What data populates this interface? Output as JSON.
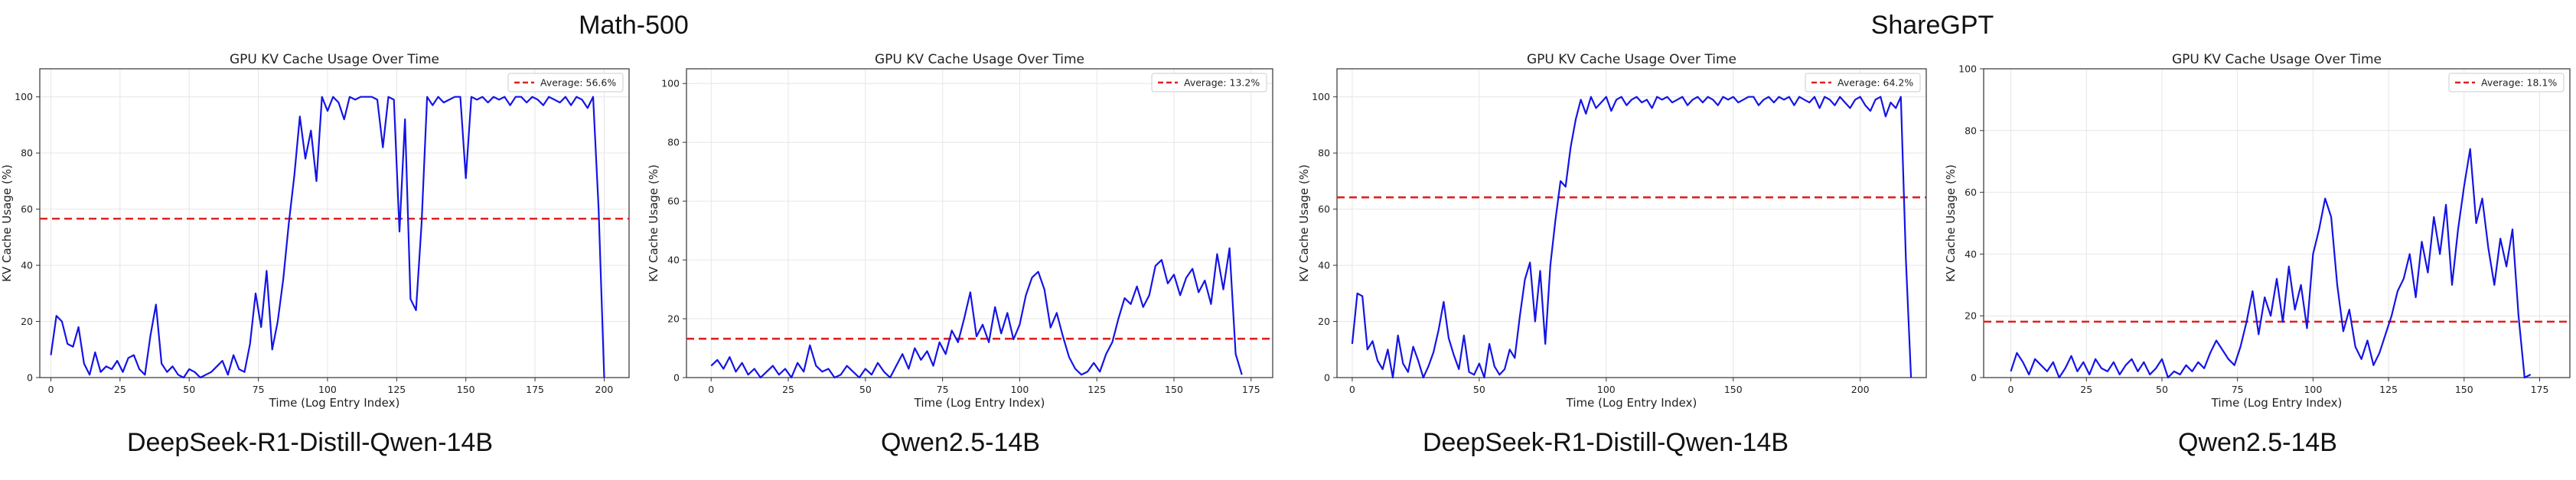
{
  "groups": [
    {
      "title": "Math-500"
    },
    {
      "title": "ShareGPT"
    }
  ],
  "colors": {
    "line": "#1414e6",
    "average": "#e02020",
    "grid": "#e6e6e6",
    "axis": "#333333"
  },
  "chart_data": [
    {
      "type": "line",
      "title": "GPU KV Cache Usage Over Time",
      "xlabel": "Time (Log Entry Index)",
      "ylabel": "KV Cache Usage (%)",
      "model_label": "DeepSeek-R1-Distill-Qwen-14B",
      "legend": "Average: 56.6%",
      "legend_position": "top-right",
      "average": 56.6,
      "xlim": [
        -4,
        209
      ],
      "ylim": [
        0,
        110
      ],
      "xticks": [
        0,
        25,
        50,
        75,
        100,
        125,
        150,
        175,
        200
      ],
      "yticks": [
        0,
        20,
        40,
        60,
        80,
        100
      ],
      "grid": true,
      "series": [
        {
          "x": [
            0,
            2,
            4,
            6,
            8,
            10,
            12,
            14,
            16,
            18,
            20,
            22,
            24,
            26,
            28,
            30,
            32,
            34,
            36,
            38,
            40,
            42,
            44,
            46,
            48,
            50,
            52,
            54,
            56,
            58,
            60,
            62,
            64,
            66,
            68,
            70,
            72,
            74,
            76,
            78,
            80,
            82,
            84,
            86,
            88,
            90,
            92,
            94,
            96,
            98,
            100,
            102,
            104,
            106,
            108,
            110,
            112,
            114,
            116,
            118,
            120,
            122,
            124,
            126,
            128,
            130,
            132,
            134,
            136,
            138,
            140,
            142,
            144,
            146,
            148,
            150,
            152,
            154,
            156,
            158,
            160,
            162,
            164,
            166,
            168,
            170,
            172,
            174,
            176,
            178,
            180,
            182,
            184,
            186,
            188,
            190,
            192,
            194,
            196,
            198,
            200
          ],
          "y": [
            8,
            22,
            20,
            12,
            11,
            18,
            5,
            1,
            9,
            2,
            4,
            3,
            6,
            2,
            7,
            8,
            3,
            1,
            15,
            26,
            5,
            2,
            4,
            1,
            0,
            3,
            2,
            0,
            1,
            2,
            4,
            6,
            1,
            8,
            3,
            2,
            12,
            30,
            18,
            38,
            10,
            20,
            35,
            55,
            72,
            93,
            78,
            88,
            70,
            100,
            95,
            100,
            98,
            92,
            100,
            99,
            100,
            100,
            100,
            99,
            82,
            100,
            99,
            52,
            92,
            28,
            24,
            55,
            100,
            97,
            100,
            98,
            99,
            100,
            100,
            71,
            100,
            99,
            100,
            98,
            100,
            99,
            100,
            97,
            100,
            100,
            98,
            100,
            99,
            97,
            100,
            99,
            98,
            100,
            97,
            100,
            99,
            96,
            100,
            60,
            0
          ]
        }
      ]
    },
    {
      "type": "line",
      "title": "GPU KV Cache Usage Over Time",
      "xlabel": "Time (Log Entry Index)",
      "ylabel": "KV Cache Usage (%)",
      "model_label": "Qwen2.5-14B",
      "legend": "Average: 13.2%",
      "legend_position": "top-right",
      "average": 13.2,
      "xlim": [
        -8,
        182
      ],
      "ylim": [
        0,
        105
      ],
      "xticks": [
        0,
        25,
        50,
        75,
        100,
        125,
        150,
        175
      ],
      "yticks": [
        0,
        20,
        40,
        60,
        80,
        100
      ],
      "grid": true,
      "series": [
        {
          "x": [
            0,
            2,
            4,
            6,
            8,
            10,
            12,
            14,
            16,
            18,
            20,
            22,
            24,
            26,
            28,
            30,
            32,
            34,
            36,
            38,
            40,
            42,
            44,
            46,
            48,
            50,
            52,
            54,
            56,
            58,
            60,
            62,
            64,
            66,
            68,
            70,
            72,
            74,
            76,
            78,
            80,
            82,
            84,
            86,
            88,
            90,
            92,
            94,
            96,
            98,
            100,
            102,
            104,
            106,
            108,
            110,
            112,
            114,
            116,
            118,
            120,
            122,
            124,
            126,
            128,
            130,
            132,
            134,
            136,
            138,
            140,
            142,
            144,
            146,
            148,
            150,
            152,
            154,
            156,
            158,
            160,
            162,
            164,
            166,
            168,
            170,
            172
          ],
          "y": [
            4,
            6,
            3,
            7,
            2,
            5,
            1,
            3,
            0,
            2,
            4,
            1,
            3,
            0,
            5,
            2,
            11,
            4,
            2,
            3,
            0,
            1,
            4,
            2,
            0,
            3,
            1,
            5,
            2,
            0,
            4,
            8,
            3,
            10,
            6,
            9,
            4,
            12,
            8,
            16,
            12,
            20,
            29,
            14,
            18,
            12,
            24,
            15,
            22,
            13,
            18,
            28,
            34,
            36,
            30,
            17,
            22,
            14,
            7,
            3,
            1,
            2,
            5,
            2,
            8,
            12,
            20,
            27,
            25,
            31,
            24,
            28,
            38,
            40,
            32,
            35,
            28,
            34,
            37,
            29,
            33,
            25,
            42,
            30,
            44,
            8,
            1
          ]
        }
      ]
    },
    {
      "type": "line",
      "title": "GPU KV Cache Usage Over Time",
      "xlabel": "Time (Log Entry Index)",
      "ylabel": "KV Cache Usage (%)",
      "model_label": "DeepSeek-R1-Distill-Qwen-14B",
      "legend": "Average: 64.2%",
      "legend_position": "top-right",
      "average": 64.2,
      "xlim": [
        -6,
        226
      ],
      "ylim": [
        0,
        110
      ],
      "xticks": [
        0,
        50,
        100,
        150,
        200
      ],
      "yticks": [
        0,
        20,
        40,
        60,
        80,
        100
      ],
      "grid": true,
      "series": [
        {
          "x": [
            0,
            2,
            4,
            6,
            8,
            10,
            12,
            14,
            16,
            18,
            20,
            22,
            24,
            26,
            28,
            30,
            32,
            34,
            36,
            38,
            40,
            42,
            44,
            46,
            48,
            50,
            52,
            54,
            56,
            58,
            60,
            62,
            64,
            66,
            68,
            70,
            72,
            74,
            76,
            78,
            80,
            82,
            84,
            86,
            88,
            90,
            92,
            94,
            96,
            98,
            100,
            102,
            104,
            106,
            108,
            110,
            112,
            114,
            116,
            118,
            120,
            122,
            124,
            126,
            128,
            130,
            132,
            134,
            136,
            138,
            140,
            142,
            144,
            146,
            148,
            150,
            152,
            154,
            156,
            158,
            160,
            162,
            164,
            166,
            168,
            170,
            172,
            174,
            176,
            178,
            180,
            182,
            184,
            186,
            188,
            190,
            192,
            194,
            196,
            198,
            200,
            202,
            204,
            206,
            208,
            210,
            212,
            214,
            216,
            218,
            220
          ],
          "y": [
            12,
            30,
            29,
            10,
            13,
            6,
            3,
            10,
            0,
            15,
            5,
            2,
            11,
            6,
            0,
            4,
            9,
            17,
            27,
            14,
            8,
            3,
            15,
            2,
            1,
            5,
            0,
            12,
            4,
            1,
            3,
            10,
            7,
            22,
            35,
            41,
            20,
            38,
            12,
            40,
            56,
            70,
            68,
            82,
            92,
            99,
            94,
            100,
            96,
            98,
            100,
            95,
            99,
            100,
            97,
            99,
            100,
            98,
            99,
            96,
            100,
            99,
            100,
            98,
            99,
            100,
            97,
            99,
            100,
            98,
            100,
            99,
            97,
            100,
            99,
            100,
            98,
            99,
            100,
            100,
            97,
            99,
            100,
            98,
            100,
            99,
            100,
            97,
            100,
            99,
            98,
            100,
            96,
            100,
            99,
            97,
            100,
            98,
            96,
            99,
            100,
            97,
            95,
            99,
            100,
            93,
            98,
            96,
            100,
            42,
            0
          ]
        }
      ]
    },
    {
      "type": "line",
      "title": "GPU KV Cache Usage Over Time",
      "xlabel": "Time (Log Entry Index)",
      "ylabel": "KV Cache Usage (%)",
      "model_label": "Qwen2.5-14B",
      "legend": "Average: 18.1%",
      "legend_position": "top-right",
      "average": 18.1,
      "xlim": [
        -9,
        185
      ],
      "ylim": [
        0,
        100
      ],
      "xticks": [
        0,
        25,
        50,
        75,
        100,
        125,
        150,
        175
      ],
      "yticks": [
        0,
        20,
        40,
        60,
        80,
        100
      ],
      "grid": true,
      "series": [
        {
          "x": [
            0,
            2,
            4,
            6,
            8,
            10,
            12,
            14,
            16,
            18,
            20,
            22,
            24,
            26,
            28,
            30,
            32,
            34,
            36,
            38,
            40,
            42,
            44,
            46,
            48,
            50,
            52,
            54,
            56,
            58,
            60,
            62,
            64,
            66,
            68,
            70,
            72,
            74,
            76,
            78,
            80,
            82,
            84,
            86,
            88,
            90,
            92,
            94,
            96,
            98,
            100,
            102,
            104,
            106,
            108,
            110,
            112,
            114,
            116,
            118,
            120,
            122,
            124,
            126,
            128,
            130,
            132,
            134,
            136,
            138,
            140,
            142,
            144,
            146,
            148,
            150,
            152,
            154,
            156,
            158,
            160,
            162,
            164,
            166,
            168,
            170,
            172
          ],
          "y": [
            2,
            8,
            5,
            1,
            6,
            4,
            2,
            5,
            0,
            3,
            7,
            2,
            5,
            1,
            6,
            3,
            2,
            5,
            1,
            4,
            6,
            2,
            5,
            1,
            3,
            6,
            0,
            2,
            1,
            4,
            2,
            5,
            3,
            8,
            12,
            9,
            6,
            4,
            10,
            18,
            28,
            14,
            26,
            20,
            32,
            18,
            36,
            22,
            30,
            16,
            40,
            48,
            58,
            52,
            30,
            15,
            22,
            10,
            6,
            12,
            4,
            8,
            14,
            20,
            28,
            32,
            40,
            26,
            44,
            34,
            52,
            40,
            56,
            30,
            48,
            62,
            74,
            50,
            58,
            42,
            30,
            45,
            36,
            48,
            20,
            0,
            1
          ]
        }
      ]
    }
  ]
}
